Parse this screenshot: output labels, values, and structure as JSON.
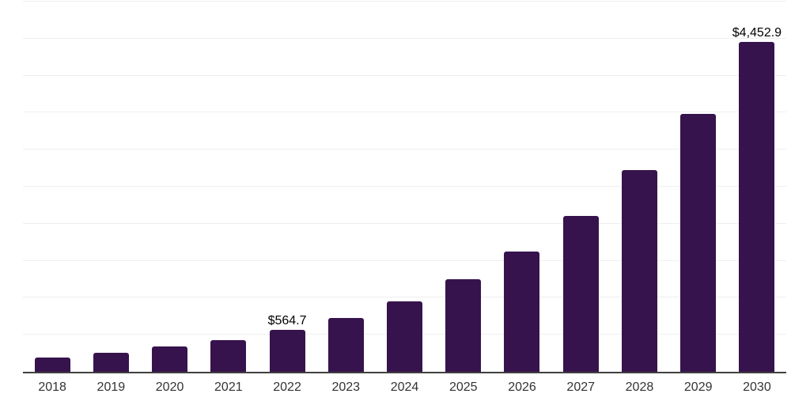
{
  "chart_data": {
    "type": "bar",
    "title": "",
    "xlabel": "",
    "ylabel": "",
    "categories": [
      "2018",
      "2019",
      "2020",
      "2021",
      "2022",
      "2023",
      "2024",
      "2025",
      "2026",
      "2027",
      "2028",
      "2029",
      "2030"
    ],
    "values": [
      190,
      255,
      337,
      430,
      564.7,
      731,
      955,
      1253,
      1621,
      2108,
      2722,
      3481,
      4452.9
    ],
    "data_labels": [
      "",
      "",
      "",
      "",
      "$564.7",
      "",
      "",
      "",
      "",
      "",
      "",
      "",
      "$4,452.9"
    ],
    "ylim": [
      0,
      5000
    ],
    "grid_step": 500,
    "grid": true,
    "legend": false,
    "colors": {
      "bar": "#36134D",
      "axis": "#404040",
      "gridline": "#efefef",
      "tick_label": "#333333",
      "value_label": "#000000",
      "background": "#ffffff"
    }
  }
}
